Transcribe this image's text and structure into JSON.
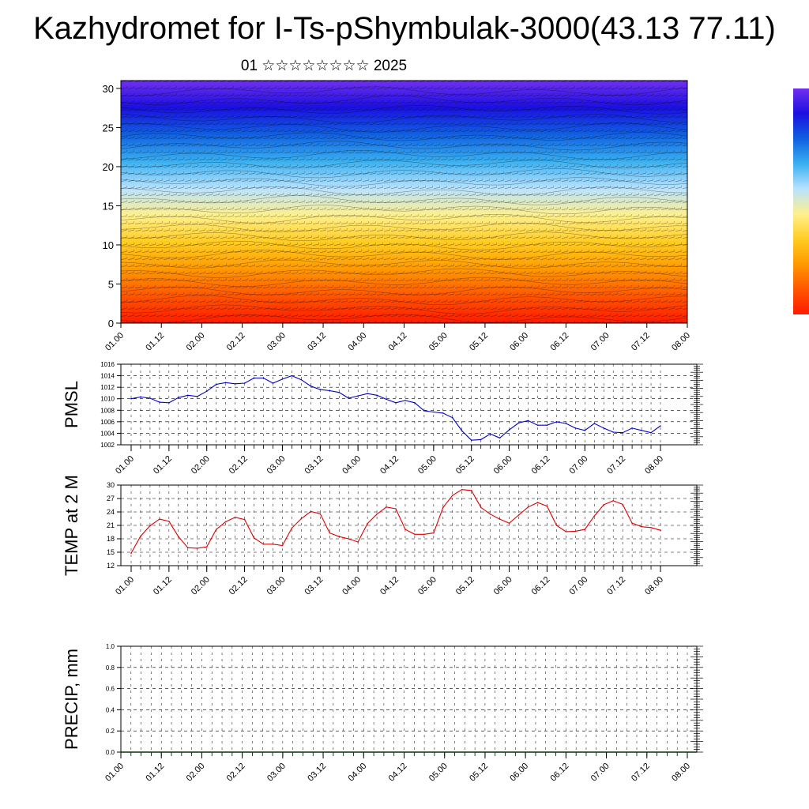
{
  "title": "Kazhydromet for I-Ts-pShymbulak-3000(43.13 77.11)",
  "subtitle": "01 ☆☆☆☆☆☆☆☆ 2025",
  "time_labels": [
    "01.00",
    "01.12",
    "02.00",
    "02.12",
    "03.00",
    "03.12",
    "04.00",
    "04.12",
    "05.00",
    "05.12",
    "06.00",
    "06.12",
    "07.00",
    "07.12",
    "08.00"
  ],
  "colors": {
    "pmsl_line": "#0000cc",
    "temp_line": "#dd0000",
    "gradient": [
      "#ff1a00",
      "#ff5500",
      "#ff9900",
      "#ffcc22",
      "#fff08c",
      "#b8e2ff",
      "#39b0f0",
      "#1060e0",
      "#1a10e0",
      "#7030f0"
    ]
  },
  "chart_data": [
    {
      "type": "heatmap",
      "name": "cross-section",
      "x_labels": [
        "01.00",
        "01.12",
        "02.00",
        "02.12",
        "03.00",
        "03.12",
        "04.00",
        "04.12",
        "05.00",
        "05.12",
        "06.00",
        "06.12",
        "07.00",
        "07.12",
        "08.00"
      ],
      "yticks": [
        0,
        5,
        10,
        15,
        20,
        25,
        30
      ],
      "ylim": [
        0,
        31
      ],
      "xlabel": "",
      "ylabel": ""
    },
    {
      "type": "line",
      "name": "pmsl",
      "ylabel": "PMSL",
      "x_labels": [
        "01.00",
        "01.12",
        "02.00",
        "02.12",
        "03.00",
        "03.12",
        "04.00",
        "04.12",
        "05.00",
        "05.12",
        "06.00",
        "06.12",
        "07.00",
        "07.12",
        "08.00"
      ],
      "yticks": [
        1002,
        1004,
        1006,
        1008,
        1010,
        1012,
        1014,
        1016
      ],
      "ylim": [
        1002,
        1016
      ],
      "values": [
        1010.0,
        1010.3,
        1010.1,
        1009.4,
        1009.3,
        1010.2,
        1010.6,
        1010.4,
        1011.3,
        1012.5,
        1012.8,
        1012.6,
        1012.7,
        1013.6,
        1013.6,
        1012.7,
        1013.4,
        1014.0,
        1013.3,
        1012.2,
        1011.6,
        1011.4,
        1011.1,
        1010.1,
        1010.5,
        1010.9,
        1010.6,
        1009.9,
        1009.3,
        1009.7,
        1009.3,
        1007.9,
        1007.7,
        1007.5,
        1006.7,
        1004.4,
        1002.8,
        1002.9,
        1003.9,
        1003.2,
        1004.6,
        1005.8,
        1006.2,
        1005.4,
        1005.4,
        1006.0,
        1005.7,
        1004.9,
        1004.5,
        1005.7,
        1004.9,
        1004.2,
        1004.1,
        1004.9,
        1004.5,
        1004.1,
        1005.3
      ]
    },
    {
      "type": "line",
      "name": "temp",
      "ylabel": "TEMP at 2 M",
      "x_labels": [
        "01.00",
        "01.12",
        "02.00",
        "02.12",
        "03.00",
        "03.12",
        "04.00",
        "04.12",
        "05.00",
        "05.12",
        "06.00",
        "06.12",
        "07.00",
        "07.12",
        "08.00"
      ],
      "yticks": [
        12,
        15,
        18,
        21,
        24,
        27,
        30
      ],
      "ylim": [
        12,
        30
      ],
      "values": [
        14.8,
        18.6,
        20.9,
        22.4,
        21.9,
        18.5,
        16.0,
        15.9,
        16.2,
        20.1,
        21.8,
        22.8,
        22.3,
        18.2,
        16.8,
        16.8,
        16.5,
        20.4,
        22.5,
        24.1,
        23.6,
        19.3,
        18.5,
        18.0,
        17.3,
        21.4,
        23.5,
        25.1,
        24.7,
        20.1,
        19.0,
        19.0,
        19.3,
        25.0,
        27.7,
        29.0,
        28.8,
        25.0,
        23.5,
        22.4,
        21.5,
        23.3,
        25.1,
        26.1,
        25.3,
        21.0,
        19.6,
        19.7,
        20.1,
        23.1,
        25.6,
        26.5,
        25.7,
        21.5,
        20.7,
        20.5,
        19.9
      ]
    },
    {
      "type": "line",
      "name": "precip",
      "ylabel": "PRECIP, mm",
      "x_labels": [
        "01.00",
        "01.12",
        "02.00",
        "02.12",
        "03.00",
        "03.12",
        "04.00",
        "04.12",
        "05.00",
        "05.12",
        "06.00",
        "06.12",
        "07.00",
        "07.12",
        "08.00"
      ],
      "yticks": [
        "0.0",
        "0.2",
        "0.4",
        "0.6",
        "0.8",
        "1.0"
      ],
      "ylim": [
        0,
        1
      ],
      "values": []
    }
  ]
}
